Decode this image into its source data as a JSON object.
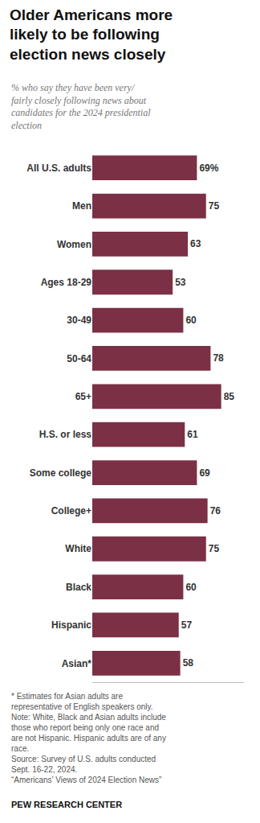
{
  "chart_data": {
    "type": "bar",
    "orientation": "horizontal",
    "title": "Older Americans more\nlikely to be following\nelection news closely",
    "subtitle": "% who say they have been very/\nfairly closely following news about\ncandidates for the 2024 presidential\nelection",
    "categories": [
      "All U.S. adults",
      "Men",
      "Women",
      "Ages 18-29",
      "30-49",
      "50-64",
      "65+",
      "H.S. or less",
      "Some college",
      "College+",
      "White",
      "Black",
      "Hispanic",
      "Asian*"
    ],
    "values": [
      69,
      75,
      63,
      53,
      60,
      78,
      85,
      61,
      69,
      76,
      75,
      60,
      57,
      58
    ],
    "value_labels": [
      "69%",
      "75",
      "63",
      "53",
      "60",
      "78",
      "85",
      "61",
      "69",
      "76",
      "75",
      "60",
      "57",
      "58"
    ],
    "color": "#7b3045",
    "xlim": [
      0,
      100
    ],
    "grid": false,
    "tick_labels": "y",
    "data_labels": true,
    "annotations": [
      "* Estimates for Asian adults are\nrepresentative of English speakers only.\nNote: White, Black and Asian adults include\nthose who report being only one race and\nare not Hispanic. Hispanic adults are of any\nrace.\nSource: Survey of U.S. adults conducted\nSept. 16-22, 2024.\n“Americans’ Views of 2024 Election News”",
      "PEW RESEARCH CENTER"
    ]
  }
}
